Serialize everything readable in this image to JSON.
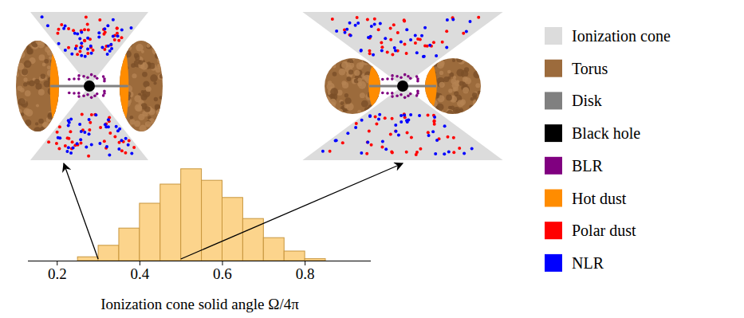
{
  "chart_data": {
    "type": "histogram",
    "xlabel": "Ionization cone solid angle Ω/4π",
    "bins": [
      0.25,
      0.3,
      0.35,
      0.4,
      0.45,
      0.5,
      0.55,
      0.6,
      0.65,
      0.7,
      0.75,
      0.8,
      0.85
    ],
    "counts": [
      2,
      8,
      17,
      30,
      40,
      48,
      42,
      33,
      22,
      12,
      5,
      1
    ],
    "color": "#fcd48c",
    "xlim": [
      0.13,
      0.96
    ],
    "xticks": [
      0.2,
      0.4,
      0.6,
      0.8
    ],
    "ylim": [
      0,
      55
    ],
    "tick_labels": "x"
  },
  "diagrams": [
    {
      "solid_angle": 0.3
    },
    {
      "solid_angle": 0.5
    }
  ],
  "legend": [
    {
      "label": "Ionization cone",
      "color": "#dcdcdc"
    },
    {
      "label": "Torus",
      "color": "#9c6b3c"
    },
    {
      "label": "Disk",
      "color": "#808080"
    },
    {
      "label": "Black hole",
      "color": "#000000"
    },
    {
      "label": "BLR",
      "color": "#800080"
    },
    {
      "label": "Hot dust",
      "color": "#ff8c00"
    },
    {
      "label": "Polar dust",
      "color": "#ff0000"
    },
    {
      "label": "NLR",
      "color": "#0000ff"
    }
  ]
}
